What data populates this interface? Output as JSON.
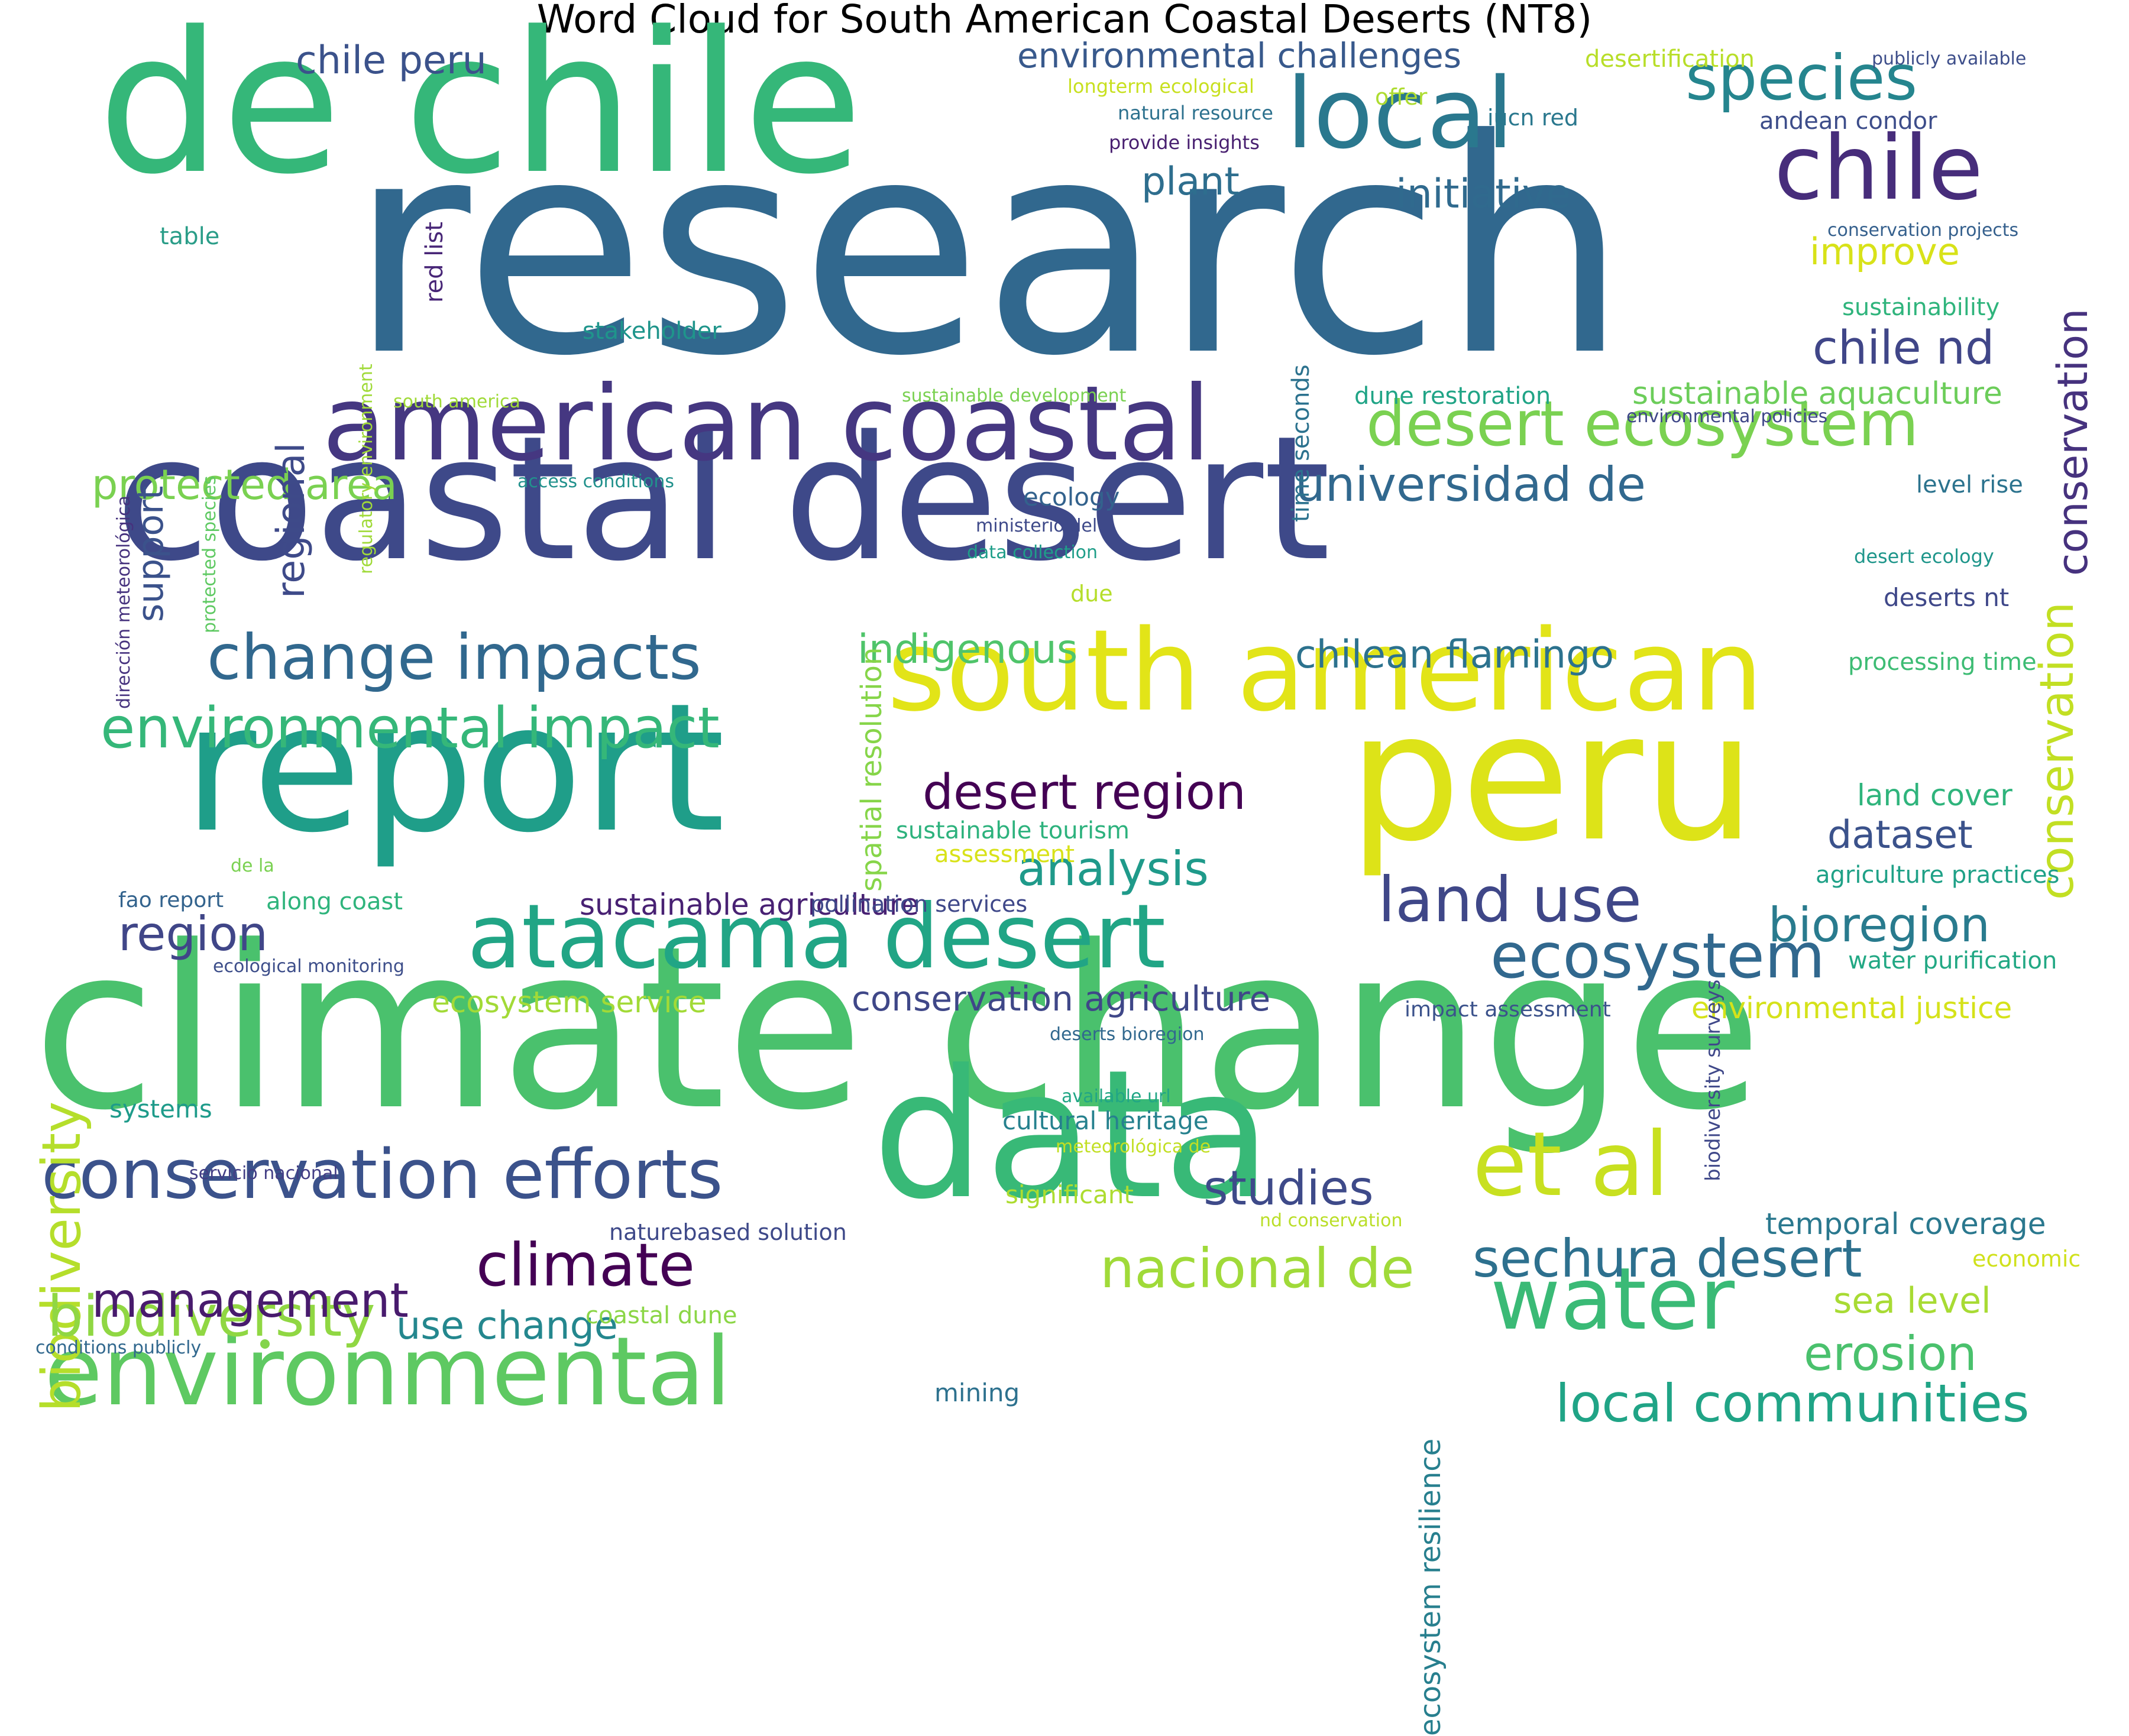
{
  "title": "Word Cloud for South American Coastal Deserts (NT8)",
  "words": [
    {
      "text": "research",
      "color": "#31688e"
    },
    {
      "text": "de chile",
      "color": "#35b779"
    },
    {
      "text": "climate change",
      "color": "#4ac16d"
    },
    {
      "text": "coastal desert",
      "color": "#3e4989"
    },
    {
      "text": "report",
      "color": "#1f9e89"
    },
    {
      "text": "south american",
      "color": "#e2e418"
    },
    {
      "text": "peru",
      "color": "#dde318"
    },
    {
      "text": "data",
      "color": "#38b977"
    },
    {
      "text": "american coastal",
      "color": "#453781"
    },
    {
      "text": "atacama desert",
      "color": "#21a585"
    },
    {
      "text": "local",
      "color": "#2a788e"
    },
    {
      "text": "chile",
      "color": "#472d7b"
    },
    {
      "text": "environmental",
      "color": "#5ec962"
    },
    {
      "text": "conservation efforts",
      "color": "#3b528b"
    },
    {
      "text": "et al",
      "color": "#c8e020"
    },
    {
      "text": "water",
      "color": "#3aba76"
    },
    {
      "text": "species",
      "color": "#25858e"
    },
    {
      "text": "desert ecosystem",
      "color": "#7ad151"
    },
    {
      "text": "conservation",
      "color": "#c2df23"
    },
    {
      "text": "biodiversity",
      "color": "#b5de2b"
    },
    {
      "text": "change impacts",
      "color": "#31688e"
    },
    {
      "text": "environmental impact",
      "color": "#35b779"
    },
    {
      "text": "ecosystem",
      "color": "#31688e"
    },
    {
      "text": "land use",
      "color": "#3f4788"
    },
    {
      "text": "sechura desert",
      "color": "#2d708e"
    },
    {
      "text": "climate",
      "color": "#440154"
    },
    {
      "text": "biodiversity",
      "color": "#90d743"
    },
    {
      "text": "nacional de",
      "color": "#a0da39"
    },
    {
      "text": "local communities",
      "color": "#20a486"
    },
    {
      "text": "erosion",
      "color": "#4ac16d"
    },
    {
      "text": "universidad de",
      "color": "#31688e"
    },
    {
      "text": "desert region",
      "color": "#440154"
    },
    {
      "text": "chile nd",
      "color": "#404688"
    },
    {
      "text": "analysis",
      "color": "#1f9a8a"
    },
    {
      "text": "management",
      "color": "#481b6d"
    },
    {
      "text": "region",
      "color": "#404688"
    },
    {
      "text": "chile peru",
      "color": "#3b528b"
    },
    {
      "text": "environmental challenges",
      "color": "#38598c"
    },
    {
      "text": "protected area",
      "color": "#7ad151"
    },
    {
      "text": "conservation",
      "color": "#46327e"
    },
    {
      "text": "chilean flamingo",
      "color": "#2c728e"
    },
    {
      "text": "bioregion",
      "color": "#297b8e"
    },
    {
      "text": "studies",
      "color": "#3e4a89"
    },
    {
      "text": "dataset",
      "color": "#3b528b"
    },
    {
      "text": "indigenous",
      "color": "#4fc46a"
    },
    {
      "text": "initiative",
      "color": "#306a8e"
    },
    {
      "text": "plant",
      "color": "#2e6e8e"
    },
    {
      "text": "improve",
      "color": "#d8e219"
    },
    {
      "text": "use change",
      "color": "#24878e"
    },
    {
      "text": "sea level",
      "color": "#a8db34"
    },
    {
      "text": "sustainable aquaculture",
      "color": "#6ccd5a"
    },
    {
      "text": "sustainable agriculture",
      "color": "#482173"
    },
    {
      "text": "conservation agriculture",
      "color": "#3f4788"
    },
    {
      "text": "ecosystem service",
      "color": "#a2da37"
    },
    {
      "text": "environmental justice",
      "color": "#d5e21a"
    },
    {
      "text": "temporal coverage",
      "color": "#2a788e"
    },
    {
      "text": "land cover",
      "color": "#2fb47c"
    },
    {
      "text": "spatial resolution",
      "color": "#86d549"
    },
    {
      "text": "support",
      "color": "#3b528b"
    },
    {
      "text": "regional",
      "color": "#3e4a89"
    },
    {
      "text": "ecosystem resilience",
      "color": "#277f8e"
    },
    {
      "text": "sustainability",
      "color": "#2fb47c"
    },
    {
      "text": "desertification",
      "color": "#b8de29"
    },
    {
      "text": "andean condor",
      "color": "#3d4d8a"
    },
    {
      "text": "dune restoration",
      "color": "#20a486"
    },
    {
      "text": "ecology",
      "color": "#33628d"
    },
    {
      "text": "deserts nt",
      "color": "#3f4889"
    },
    {
      "text": "processing time",
      "color": "#3dbc74"
    },
    {
      "text": "level rise",
      "color": "#2c738e"
    },
    {
      "text": "agriculture practices",
      "color": "#1fa187"
    },
    {
      "text": "water purification",
      "color": "#22a884"
    },
    {
      "text": "systems",
      "color": "#1e9b8a"
    },
    {
      "text": "cultural heritage",
      "color": "#26818e"
    },
    {
      "text": "significant",
      "color": "#addc30"
    },
    {
      "text": "mining",
      "color": "#2d718e"
    },
    {
      "text": "coastal dune",
      "color": "#8bd646"
    },
    {
      "text": "along coast",
      "color": "#2fb47c"
    },
    {
      "text": "fao report",
      "color": "#33638d"
    },
    {
      "text": "table",
      "color": "#2a9d88"
    },
    {
      "text": "stakeholder",
      "color": "#1f958b"
    },
    {
      "text": "sustainable tourism",
      "color": "#2db27d"
    },
    {
      "text": "assessment",
      "color": "#d8e219"
    },
    {
      "text": "pollination services",
      "color": "#3f4889"
    },
    {
      "text": "impact assessment",
      "color": "#3b528b"
    },
    {
      "text": "naturebased solution",
      "color": "#3e4989"
    },
    {
      "text": "economic",
      "color": "#d0e11c"
    },
    {
      "text": "red list",
      "color": "#482677"
    },
    {
      "text": "regulatory environment",
      "color": "#a0da39"
    },
    {
      "text": "time seconds",
      "color": "#2c728e"
    },
    {
      "text": "biodiversity surveys",
      "color": "#3f4889"
    },
    {
      "text": "offer",
      "color": "#addc30"
    },
    {
      "text": "iucn red",
      "color": "#2a788e"
    },
    {
      "text": "publicly available",
      "color": "#3d4e8a"
    },
    {
      "text": "longterm ecological",
      "color": "#c8e020"
    },
    {
      "text": "natural resource",
      "color": "#2d718e"
    },
    {
      "text": "provide insights",
      "color": "#481f70"
    },
    {
      "text": "conservation projects",
      "color": "#35608d"
    },
    {
      "text": "environmental policies",
      "color": "#3f4788"
    },
    {
      "text": "sustainable development",
      "color": "#7ad151"
    },
    {
      "text": "south america",
      "color": "#a0da39"
    },
    {
      "text": "access conditions",
      "color": "#21918c"
    },
    {
      "text": "ministerio del",
      "color": "#3e4989"
    },
    {
      "text": "data collection",
      "color": "#1f9e89"
    },
    {
      "text": "due",
      "color": "#b5de2b"
    },
    {
      "text": "desert ecology",
      "color": "#1f968b"
    },
    {
      "text": "dirección meteorológica",
      "color": "#46327e"
    },
    {
      "text": "protected species",
      "color": "#5ec962"
    },
    {
      "text": "de la",
      "color": "#7ad151"
    },
    {
      "text": "ecological monitoring",
      "color": "#3d4e8a"
    },
    {
      "text": "deserts bioregion",
      "color": "#31688e"
    },
    {
      "text": "available url",
      "color": "#21a685"
    },
    {
      "text": "meteorológica de",
      "color": "#c2df23"
    },
    {
      "text": "nd conservation",
      "color": "#bade28"
    },
    {
      "text": "servicio nacional",
      "color": "#433e85"
    },
    {
      "text": "conditions publicly",
      "color": "#31688e"
    }
  ]
}
